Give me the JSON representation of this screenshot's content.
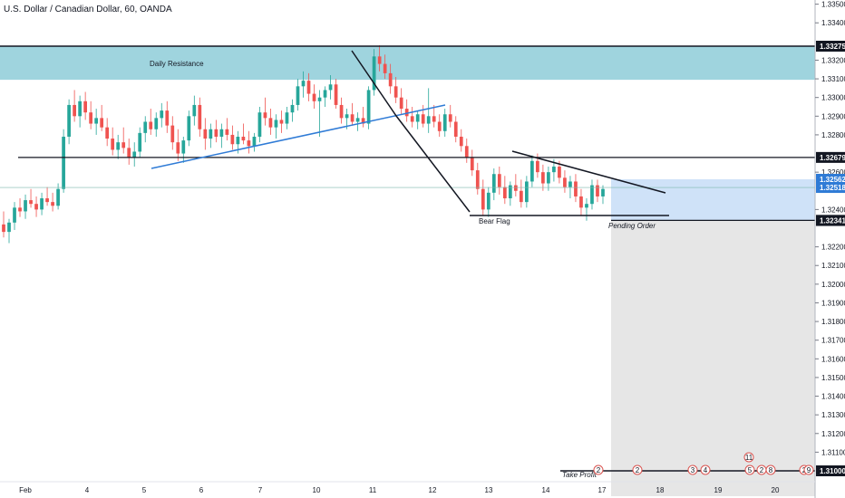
{
  "chart_title": "U.S. Dollar / Canadian Dollar, 60, OANDA",
  "colors": {
    "up": "#26a69a",
    "down": "#ef5350",
    "resistance_zone": "#9fd4de",
    "target_zone": "#cfe2f8",
    "stop_zone": "#e6e6e6",
    "trendline": "#2f7bd6",
    "axis_tag_dark": "#131722",
    "axis_tag_blue": "#2f7bd6"
  },
  "chart_data": {
    "type": "candlestick",
    "y_ticks": [
      "1.33500",
      "1.33400",
      "1.33200",
      "1.33100",
      "1.33000",
      "1.32900",
      "1.32800",
      "1.32600",
      "1.32400",
      "1.32200",
      "1.32100",
      "1.32000",
      "1.31900",
      "1.31800",
      "1.31700",
      "1.31600",
      "1.31500",
      "1.31400",
      "1.31300",
      "1.31200",
      "1.31100"
    ],
    "x_ticks": [
      "Feb",
      "4",
      "5",
      "6",
      "7",
      "10",
      "11",
      "12",
      "13",
      "14",
      "17",
      "18",
      "19",
      "20"
    ],
    "price_tags": [
      {
        "label": "1.33275",
        "value": 1.33275,
        "style": "dark"
      },
      {
        "label": "1.32679",
        "value": 1.32679,
        "style": "dark"
      },
      {
        "label": "1.32562",
        "value": 1.32562,
        "style": "blue"
      },
      {
        "label": "1.32518",
        "value": 1.32518,
        "style": "blue"
      },
      {
        "label": "1.32342",
        "value": 1.32342,
        "style": "dark"
      },
      {
        "label": "1.32341",
        "value": 1.32341,
        "style": "dark"
      },
      {
        "label": "1.31000",
        "value": 1.31,
        "style": "dark"
      }
    ],
    "annotations": {
      "resistance_label": "Daily Resistance",
      "bear_flag_label": "Bear Flag",
      "pending_order_label": "Pending Order",
      "take_profit_label": "Take Profit"
    },
    "levels": {
      "resistance_top": 1.33275,
      "resistance_bottom": 1.33095,
      "support_line": 1.32679,
      "entry_line": 1.32342,
      "current_price": 1.32518,
      "target_zone_top": 1.32562,
      "take_profit": 1.31
    },
    "event_badges": [
      "2",
      "2",
      "3",
      "4",
      "11",
      "5",
      "2",
      "8",
      "2",
      "9"
    ],
    "candles": [
      [
        1.3232,
        1.3239,
        1.3225,
        1.3228
      ],
      [
        1.3228,
        1.3235,
        1.3222,
        1.3233
      ],
      [
        1.3233,
        1.3244,
        1.3229,
        1.3241
      ],
      [
        1.3241,
        1.3246,
        1.3236,
        1.3239
      ],
      [
        1.3239,
        1.3248,
        1.3235,
        1.3245
      ],
      [
        1.3245,
        1.3251,
        1.3241,
        1.3243
      ],
      [
        1.3243,
        1.3247,
        1.3236,
        1.324
      ],
      [
        1.324,
        1.3249,
        1.3237,
        1.3246
      ],
      [
        1.3246,
        1.3252,
        1.3242,
        1.3244
      ],
      [
        1.3244,
        1.3249,
        1.3239,
        1.3242
      ],
      [
        1.3242,
        1.3254,
        1.324,
        1.3251
      ],
      [
        1.3251,
        1.3283,
        1.3249,
        1.3279
      ],
      [
        1.3279,
        1.3299,
        1.3275,
        1.3296
      ],
      [
        1.3296,
        1.3304,
        1.3287,
        1.329
      ],
      [
        1.329,
        1.3301,
        1.3284,
        1.3298
      ],
      [
        1.3298,
        1.3303,
        1.3288,
        1.3292
      ],
      [
        1.3292,
        1.3298,
        1.3283,
        1.3286
      ],
      [
        1.3286,
        1.3294,
        1.328,
        1.3289
      ],
      [
        1.3289,
        1.3296,
        1.3282,
        1.3284
      ],
      [
        1.3284,
        1.3289,
        1.3274,
        1.3278
      ],
      [
        1.3278,
        1.3284,
        1.3269,
        1.3272
      ],
      [
        1.3272,
        1.328,
        1.3267,
        1.3276
      ],
      [
        1.3276,
        1.3284,
        1.327,
        1.3273
      ],
      [
        1.3273,
        1.3278,
        1.3264,
        1.3268
      ],
      [
        1.3268,
        1.3276,
        1.3263,
        1.3271
      ],
      [
        1.3271,
        1.3284,
        1.3268,
        1.3281
      ],
      [
        1.3281,
        1.329,
        1.3276,
        1.3287
      ],
      [
        1.3287,
        1.3294,
        1.328,
        1.3283
      ],
      [
        1.3283,
        1.3292,
        1.3279,
        1.3289
      ],
      [
        1.3289,
        1.3297,
        1.3284,
        1.3293
      ],
      [
        1.3293,
        1.3298,
        1.3281,
        1.3285
      ],
      [
        1.3285,
        1.329,
        1.3272,
        1.3276
      ],
      [
        1.3276,
        1.3283,
        1.3266,
        1.327
      ],
      [
        1.327,
        1.3279,
        1.3265,
        1.3277
      ],
      [
        1.3277,
        1.3293,
        1.3274,
        1.329
      ],
      [
        1.329,
        1.3301,
        1.3285,
        1.3296
      ],
      [
        1.3296,
        1.33,
        1.3279,
        1.3283
      ],
      [
        1.3283,
        1.3289,
        1.3272,
        1.3278
      ],
      [
        1.3278,
        1.3286,
        1.3273,
        1.3283
      ],
      [
        1.3283,
        1.3288,
        1.3276,
        1.3279
      ],
      [
        1.3279,
        1.3286,
        1.3273,
        1.3283
      ],
      [
        1.3283,
        1.3289,
        1.3277,
        1.328
      ],
      [
        1.328,
        1.3285,
        1.3272,
        1.3275
      ],
      [
        1.3275,
        1.3282,
        1.327,
        1.3279
      ],
      [
        1.3279,
        1.3286,
        1.3275,
        1.3277
      ],
      [
        1.3277,
        1.3282,
        1.327,
        1.3274
      ],
      [
        1.3274,
        1.3281,
        1.3271,
        1.3279
      ],
      [
        1.3279,
        1.3295,
        1.3276,
        1.3292
      ],
      [
        1.3292,
        1.33,
        1.3285,
        1.3289
      ],
      [
        1.3289,
        1.3294,
        1.328,
        1.3284
      ],
      [
        1.3284,
        1.3291,
        1.3278,
        1.3288
      ],
      [
        1.3288,
        1.3293,
        1.3281,
        1.3286
      ],
      [
        1.3286,
        1.3295,
        1.3283,
        1.3292
      ],
      [
        1.3292,
        1.3299,
        1.3287,
        1.3296
      ],
      [
        1.3296,
        1.331,
        1.3293,
        1.3306
      ],
      [
        1.3306,
        1.3314,
        1.33,
        1.3309
      ],
      [
        1.3309,
        1.3313,
        1.3298,
        1.3302
      ],
      [
        1.3302,
        1.3307,
        1.3294,
        1.3298
      ],
      [
        1.3298,
        1.3304,
        1.3279,
        1.33
      ],
      [
        1.33,
        1.3306,
        1.3295,
        1.3304
      ],
      [
        1.3304,
        1.3312,
        1.3299,
        1.3307
      ],
      [
        1.3307,
        1.331,
        1.3294,
        1.3296
      ],
      [
        1.3296,
        1.33,
        1.3286,
        1.3289
      ],
      [
        1.3289,
        1.3294,
        1.3283,
        1.3291
      ],
      [
        1.3291,
        1.3297,
        1.3285,
        1.3287
      ],
      [
        1.3287,
        1.3292,
        1.3282,
        1.3289
      ],
      [
        1.3289,
        1.3295,
        1.3284,
        1.3286
      ],
      [
        1.3286,
        1.3306,
        1.3283,
        1.3304
      ],
      [
        1.3304,
        1.3326,
        1.3301,
        1.3322
      ],
      [
        1.3322,
        1.3328,
        1.3314,
        1.3318
      ],
      [
        1.3318,
        1.3323,
        1.331,
        1.3313
      ],
      [
        1.3313,
        1.3318,
        1.3302,
        1.3306
      ],
      [
        1.3306,
        1.3311,
        1.3297,
        1.33
      ],
      [
        1.33,
        1.3305,
        1.3291,
        1.3294
      ],
      [
        1.3294,
        1.3299,
        1.3287,
        1.329
      ],
      [
        1.329,
        1.3295,
        1.3284,
        1.3287
      ],
      [
        1.3287,
        1.3293,
        1.3283,
        1.3291
      ],
      [
        1.3291,
        1.3296,
        1.3284,
        1.3286
      ],
      [
        1.3286,
        1.3305,
        1.3281,
        1.329
      ],
      [
        1.329,
        1.3296,
        1.3284,
        1.3287
      ],
      [
        1.3287,
        1.3291,
        1.3279,
        1.3282
      ],
      [
        1.3282,
        1.3294,
        1.3279,
        1.3291
      ],
      [
        1.3291,
        1.3296,
        1.3284,
        1.3287
      ],
      [
        1.3287,
        1.329,
        1.3276,
        1.3279
      ],
      [
        1.3279,
        1.3283,
        1.3271,
        1.3274
      ],
      [
        1.3274,
        1.3278,
        1.3265,
        1.3268
      ],
      [
        1.3268,
        1.3272,
        1.3258,
        1.3261
      ],
      [
        1.3261,
        1.3265,
        1.3248,
        1.3251
      ],
      [
        1.3251,
        1.3256,
        1.3237,
        1.324
      ],
      [
        1.324,
        1.3252,
        1.3236,
        1.3249
      ],
      [
        1.3249,
        1.3262,
        1.3245,
        1.3259
      ],
      [
        1.3259,
        1.3263,
        1.3248,
        1.3252
      ],
      [
        1.3252,
        1.3258,
        1.3243,
        1.3246
      ],
      [
        1.3246,
        1.3255,
        1.3242,
        1.3253
      ],
      [
        1.3253,
        1.3259,
        1.3247,
        1.325
      ],
      [
        1.325,
        1.3256,
        1.3241,
        1.3244
      ],
      [
        1.3244,
        1.3258,
        1.3241,
        1.3255
      ],
      [
        1.3255,
        1.3269,
        1.3252,
        1.3266
      ],
      [
        1.3266,
        1.327,
        1.3257,
        1.326
      ],
      [
        1.326,
        1.3264,
        1.325,
        1.3254
      ],
      [
        1.3254,
        1.3263,
        1.325,
        1.326
      ],
      [
        1.326,
        1.3267,
        1.3255,
        1.3263
      ],
      [
        1.3263,
        1.3266,
        1.3254,
        1.3257
      ],
      [
        1.3257,
        1.3261,
        1.3249,
        1.3252
      ],
      [
        1.3252,
        1.3258,
        1.3246,
        1.3255
      ],
      [
        1.3255,
        1.3259,
        1.3244,
        1.3247
      ],
      [
        1.3247,
        1.3251,
        1.3237,
        1.3241
      ],
      [
        1.3241,
        1.3246,
        1.3234,
        1.3243
      ],
      [
        1.3243,
        1.3256,
        1.324,
        1.3253
      ],
      [
        1.3253,
        1.3256,
        1.3244,
        1.3247
      ],
      [
        1.3247,
        1.3253,
        1.3243,
        1.3251
      ]
    ]
  }
}
